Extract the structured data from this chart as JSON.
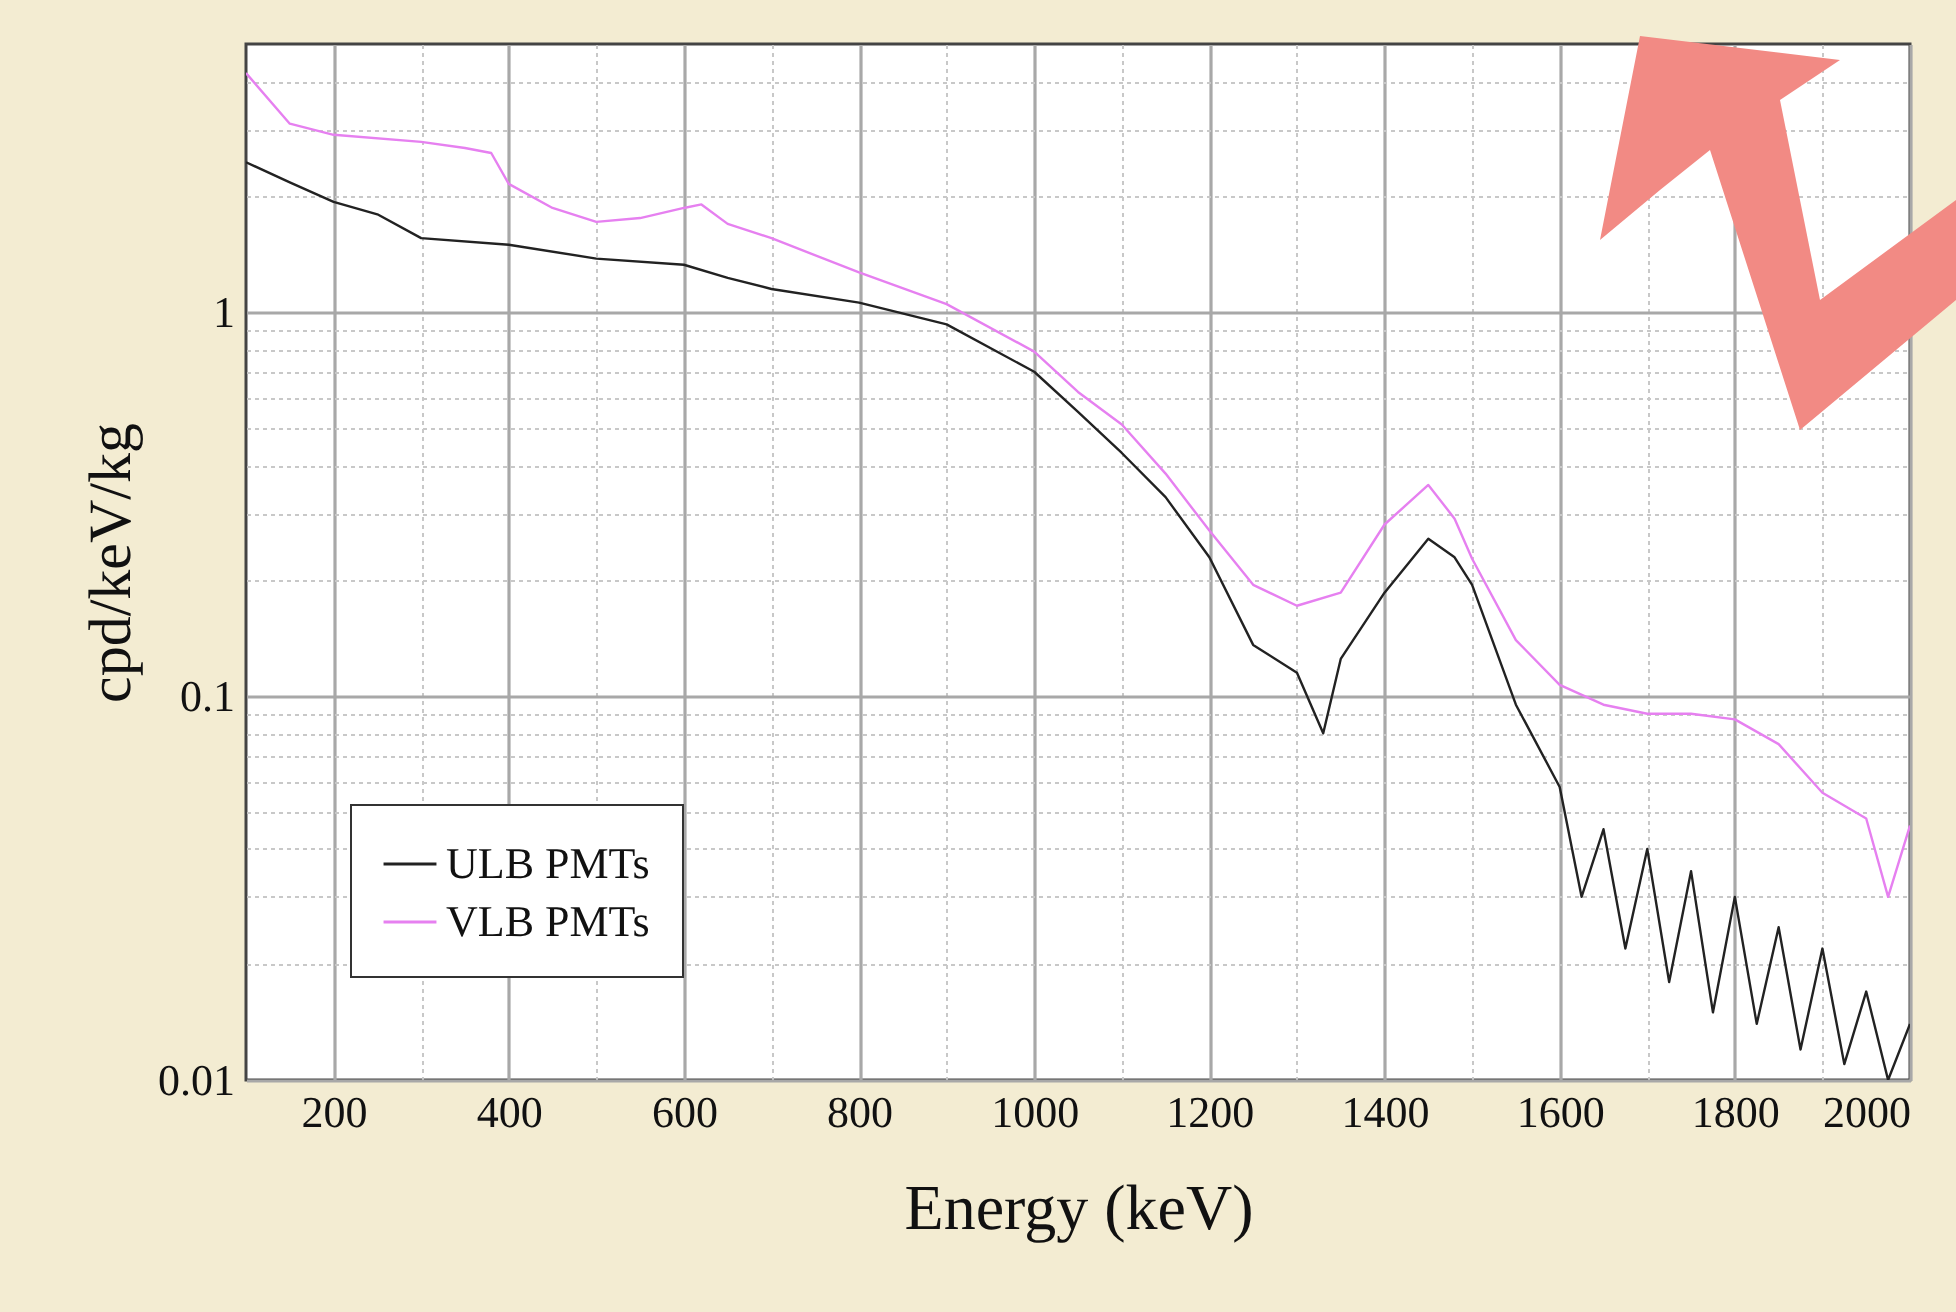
{
  "chart_data": {
    "type": "line",
    "xlabel": "Energy (keV)",
    "ylabel": "cpd/keV/kg",
    "log": "y",
    "grid": true,
    "legend": "bottom left",
    "marker": "none",
    "line_style": "solid",
    "xlim": [
      100,
      2000
    ],
    "ylim": [
      0.01,
      5
    ],
    "xticks": [
      200,
      {
        "value": 300,
        "label": null
      },
      400,
      {
        "value": 500,
        "label": null
      },
      600,
      {
        "value": 700,
        "label": null
      },
      800,
      {
        "value": 900,
        "label": null
      },
      1000,
      {
        "value": 1100,
        "label": null
      },
      1200,
      {
        "value": 1300,
        "label": null
      },
      1400,
      {
        "value": 1500,
        "label": null
      },
      1600,
      {
        "value": 1700,
        "label": null
      },
      1800,
      {
        "value": 1900,
        "label": null
      },
      2000
    ],
    "yticks": [
      0.01,
      {
        "value": 0.02,
        "label": null
      },
      {
        "value": 0.03,
        "label": null
      },
      {
        "value": 0.04,
        "label": null
      },
      {
        "value": 0.05,
        "label": null
      },
      {
        "value": 0.06,
        "label": null
      },
      {
        "value": 0.07,
        "label": null
      },
      {
        "value": 0.08,
        "label": null
      },
      {
        "value": 0.09,
        "label": null
      },
      0.1,
      {
        "value": 0.2,
        "label": null
      },
      {
        "value": 0.3,
        "label": null
      },
      {
        "value": 0.4,
        "label": null
      },
      {
        "value": 0.5,
        "label": null
      },
      {
        "value": 0.6,
        "label": null
      },
      {
        "value": 0.7,
        "label": null
      },
      {
        "value": 0.8,
        "label": null
      },
      {
        "value": 0.9,
        "label": null
      },
      1,
      {
        "value": 2,
        "label": null
      },
      {
        "value": 3,
        "label": null
      },
      {
        "value": 4,
        "label": null
      }
    ],
    "series": [
      {
        "name": "ULB PMTs",
        "color": "#222222",
        "x": [
          100,
          150,
          200,
          250,
          300,
          400,
          500,
          600,
          650,
          700,
          800,
          900,
          1000,
          1050,
          1100,
          1150,
          1200,
          1250,
          1300,
          1330,
          1350,
          1400,
          1450,
          1480,
          1500,
          1550,
          1600,
          1625,
          1650,
          1675,
          1700,
          1725,
          1750,
          1775,
          1800,
          1825,
          1850,
          1875,
          1900,
          1925,
          1950,
          1975,
          2000
        ],
        "values": [
          2.46,
          2.18,
          1.94,
          1.8,
          1.56,
          1.5,
          1.38,
          1.33,
          1.23,
          1.15,
          1.06,
          0.93,
          0.7,
          0.55,
          0.43,
          0.33,
          0.23,
          0.136,
          0.115,
          0.08,
          0.125,
          0.186,
          0.257,
          0.23,
          0.195,
          0.095,
          0.058,
          0.03,
          0.045,
          0.022,
          0.04,
          0.018,
          0.035,
          0.015,
          0.03,
          0.014,
          0.025,
          0.012,
          0.022,
          0.011,
          0.017,
          0.01,
          0.014
        ]
      },
      {
        "name": "VLB PMTs",
        "color": "#e680f0",
        "x": [
          100,
          150,
          200,
          300,
          350,
          380,
          400,
          450,
          500,
          550,
          600,
          620,
          650,
          700,
          800,
          900,
          1000,
          1050,
          1100,
          1150,
          1200,
          1250,
          1300,
          1350,
          1400,
          1450,
          1480,
          1500,
          1550,
          1600,
          1650,
          1700,
          1750,
          1800,
          1850,
          1900,
          1950,
          1975,
          2000
        ],
        "values": [
          4.2,
          3.1,
          2.9,
          2.78,
          2.68,
          2.6,
          2.16,
          1.87,
          1.72,
          1.76,
          1.87,
          1.91,
          1.7,
          1.56,
          1.27,
          1.05,
          0.79,
          0.62,
          0.51,
          0.38,
          0.27,
          0.195,
          0.172,
          0.186,
          0.28,
          0.355,
          0.29,
          0.228,
          0.14,
          0.107,
          0.095,
          0.09,
          0.09,
          0.087,
          0.075,
          0.056,
          0.048,
          0.03,
          0.046
        ]
      }
    ]
  }
}
